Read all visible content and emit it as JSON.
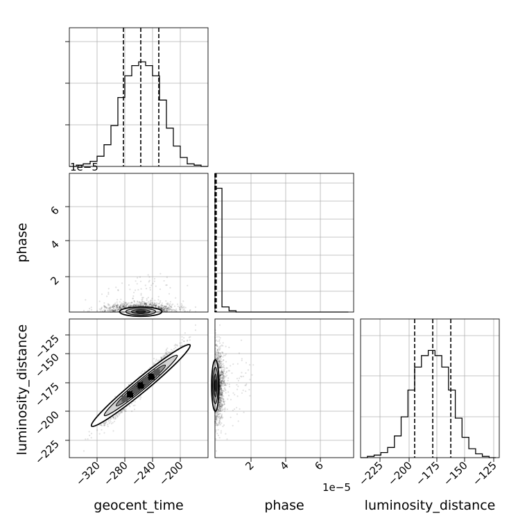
{
  "chart_data": {
    "type": "corner",
    "parameters": [
      "geocent_time",
      "phase",
      "luminosity_distance"
    ],
    "axis_labels": {
      "geocent_time": "geocent_time",
      "phase": "phase",
      "luminosity_distance": "luminosity_distance"
    },
    "ticks": {
      "geocent_time": [
        "−320",
        "−280",
        "−240",
        "−200"
      ],
      "phase_x": [
        "2",
        "4",
        "6"
      ],
      "phase_y": [
        "2",
        "4",
        "6"
      ],
      "luminosity_distance_y": [
        "−125",
        "−150",
        "−175",
        "−200",
        "−225"
      ],
      "luminosity_distance_x": [
        "−225",
        "−200",
        "−175",
        "−150",
        "−125"
      ]
    },
    "offset_texts": {
      "phase_y": "1e−5",
      "phase_x": "1e−5"
    },
    "ranges": {
      "geocent_time": [
        -359,
        -159
      ],
      "phase": [
        0,
        7.9e-05
      ],
      "luminosity_distance": [
        -242,
        -119
      ]
    },
    "quantiles": {
      "geocent_time": [
        -281,
        -256,
        -230
      ],
      "phase": [
        0.0,
        3e-07,
        7e-07
      ],
      "luminosity_distance": [
        -194,
        -178,
        -162
      ]
    },
    "histograms": {
      "geocent_time": {
        "bin_edges": [
          -359,
          -349,
          -339,
          -329,
          -319,
          -309,
          -299,
          -289,
          -279,
          -269,
          -259,
          -249,
          -239,
          -229,
          -219,
          -209,
          -199,
          -189,
          -179,
          -169,
          -159
        ],
        "heights": [
          0.0,
          0.01,
          0.02,
          0.04,
          0.08,
          0.17,
          0.32,
          0.54,
          0.71,
          0.79,
          0.82,
          0.79,
          0.71,
          0.52,
          0.3,
          0.16,
          0.07,
          0.02,
          0.01,
          0.0
        ]
      },
      "phase": {
        "bin_edges": [
          0,
          4e-06,
          8e-06,
          1.2e-05,
          1.6e-05,
          2e-05,
          2.4e-05,
          2.8e-05,
          3.2e-05,
          3.6e-05,
          4e-05,
          4.4e-05,
          4.8e-05,
          5.2e-05,
          5.6e-05,
          6e-05,
          6.4e-05,
          6.8e-05,
          7.2e-05,
          7.6e-05
        ],
        "heights": [
          0.97,
          0.04,
          0.01,
          0.0,
          0.0,
          0.0,
          0.0,
          0.0,
          0.0,
          0.0,
          0.0,
          0.0,
          0.0,
          0.0,
          0.0,
          0.0,
          0.0,
          0.0,
          0.0
        ]
      },
      "luminosity_distance": {
        "bin_edges": [
          -242,
          -236,
          -230,
          -224,
          -218,
          -212,
          -206,
          -200,
          -194,
          -188,
          -182,
          -176,
          -170,
          -164,
          -158,
          -152,
          -146,
          -140,
          -134,
          -128,
          -122
        ],
        "heights": [
          0.0,
          0.01,
          0.02,
          0.04,
          0.08,
          0.17,
          0.32,
          0.53,
          0.71,
          0.8,
          0.84,
          0.8,
          0.71,
          0.53,
          0.31,
          0.16,
          0.07,
          0.03,
          0.01,
          0.0
        ]
      }
    },
    "grid": true,
    "yaxis_top_row_ticks": [
      "",
      "",
      ""
    ]
  }
}
